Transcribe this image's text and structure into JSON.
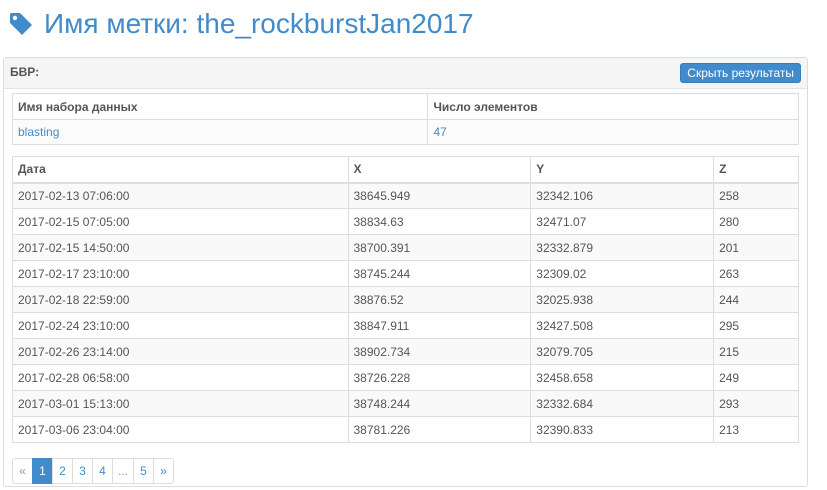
{
  "header": {
    "title": "Имя метки: the_rockburstJan2017",
    "icon": "tag-icon"
  },
  "panel": {
    "label": "БВР:",
    "hide_button": "Скрыть результаты"
  },
  "dataset_table": {
    "headers": [
      "Имя набора данных",
      "Число элементов"
    ],
    "row": {
      "name": "blasting",
      "count": "47"
    }
  },
  "data_table": {
    "headers": [
      "Дата",
      "X",
      "Y",
      "Z"
    ],
    "rows": [
      [
        "2017-02-13 07:06:00",
        "38645.949",
        "32342.106",
        "258"
      ],
      [
        "2017-02-15 07:05:00",
        "38834.63",
        "32471.07",
        "280"
      ],
      [
        "2017-02-15 14:50:00",
        "38700.391",
        "32332.879",
        "201"
      ],
      [
        "2017-02-17 23:10:00",
        "38745.244",
        "32309.02",
        "263"
      ],
      [
        "2017-02-18 22:59:00",
        "38876.52",
        "32025.938",
        "244"
      ],
      [
        "2017-02-24 23:10:00",
        "38847.911",
        "32427.508",
        "295"
      ],
      [
        "2017-02-26 23:14:00",
        "38902.734",
        "32079.705",
        "215"
      ],
      [
        "2017-02-28 06:58:00",
        "38726.228",
        "32458.658",
        "249"
      ],
      [
        "2017-03-01 15:13:00",
        "38748.244",
        "32332.684",
        "293"
      ],
      [
        "2017-03-06 23:04:00",
        "38781.226",
        "32390.833",
        "213"
      ]
    ]
  },
  "pagination": {
    "items": [
      {
        "label": "«",
        "state": "disabled"
      },
      {
        "label": "1",
        "state": "active"
      },
      {
        "label": "2",
        "state": ""
      },
      {
        "label": "3",
        "state": ""
      },
      {
        "label": "4",
        "state": ""
      },
      {
        "label": "...",
        "state": "disabled"
      },
      {
        "label": "5",
        "state": ""
      },
      {
        "label": "»",
        "state": ""
      }
    ]
  }
}
